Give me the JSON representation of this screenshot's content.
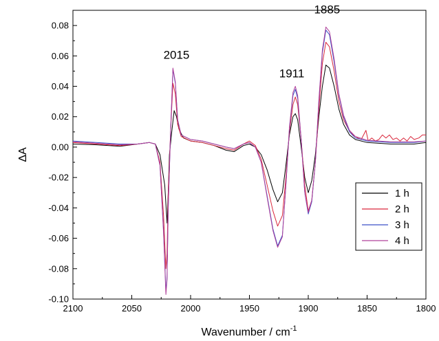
{
  "chart_data": {
    "type": "line",
    "xlabel": "Wavenumber / cm",
    "xlabel_sup": "-1",
    "ylabel": "ΔA",
    "xlim": [
      2100,
      1800
    ],
    "ylim": [
      -0.1,
      0.09
    ],
    "x_reversed": true,
    "x_ticks": [
      2100,
      2050,
      2000,
      1950,
      1900,
      1850,
      1800
    ],
    "x_tick_labels": [
      "2100",
      "2050",
      "2000",
      "1950",
      "1900",
      "1850",
      "1800"
    ],
    "y_ticks": [
      -0.1,
      -0.08,
      -0.06,
      -0.04,
      -0.02,
      0.0,
      0.02,
      0.04,
      0.06,
      0.08
    ],
    "y_tick_labels": [
      "-0.10",
      "-0.08",
      "-0.06",
      "-0.04",
      "-0.02",
      "0.00",
      "0.02",
      "0.04",
      "0.06",
      "0.08"
    ],
    "grid": false,
    "legend_position": "bottom-right",
    "annotations": [
      {
        "text": "2015",
        "x": 2012,
        "y": 0.058
      },
      {
        "text": "1911",
        "x": 1914,
        "y": 0.046
      },
      {
        "text": "1885",
        "x": 1884,
        "y": 0.088
      }
    ],
    "series": [
      {
        "name": "1 h",
        "color": "#000000",
        "points": [
          [
            2100,
            0.002
          ],
          [
            2080,
            0.0015
          ],
          [
            2060,
            0.0005
          ],
          [
            2045,
            0.002
          ],
          [
            2035,
            0.003
          ],
          [
            2030,
            0.002
          ],
          [
            2026,
            -0.005
          ],
          [
            2022,
            -0.025
          ],
          [
            2020,
            -0.05
          ],
          [
            2019,
            -0.03
          ],
          [
            2018,
            -0.005
          ],
          [
            2016,
            0.01
          ],
          [
            2014,
            0.024
          ],
          [
            2012,
            0.02
          ],
          [
            2010,
            0.012
          ],
          [
            2006,
            0.006
          ],
          [
            2000,
            0.004
          ],
          [
            1990,
            0.003
          ],
          [
            1980,
            0.001
          ],
          [
            1970,
            -0.002
          ],
          [
            1963,
            -0.003
          ],
          [
            1955,
            0.001
          ],
          [
            1950,
            0.002
          ],
          [
            1945,
            0.0
          ],
          [
            1940,
            -0.005
          ],
          [
            1935,
            -0.015
          ],
          [
            1930,
            -0.028
          ],
          [
            1926,
            -0.036
          ],
          [
            1922,
            -0.03
          ],
          [
            1919,
            -0.012
          ],
          [
            1916,
            0.008
          ],
          [
            1913,
            0.02
          ],
          [
            1911,
            0.022
          ],
          [
            1909,
            0.018
          ],
          [
            1906,
            0.0
          ],
          [
            1903,
            -0.02
          ],
          [
            1900,
            -0.03
          ],
          [
            1897,
            -0.022
          ],
          [
            1894,
            -0.005
          ],
          [
            1891,
            0.02
          ],
          [
            1888,
            0.04
          ],
          [
            1885,
            0.054
          ],
          [
            1882,
            0.052
          ],
          [
            1878,
            0.04
          ],
          [
            1874,
            0.025
          ],
          [
            1870,
            0.015
          ],
          [
            1865,
            0.008
          ],
          [
            1860,
            0.005
          ],
          [
            1850,
            0.003
          ],
          [
            1840,
            0.0025
          ],
          [
            1830,
            0.002
          ],
          [
            1820,
            0.002
          ],
          [
            1810,
            0.002
          ],
          [
            1800,
            0.003
          ]
        ]
      },
      {
        "name": "2 h",
        "color": "#d9253a",
        "points": [
          [
            2100,
            0.003
          ],
          [
            2080,
            0.002
          ],
          [
            2060,
            0.001
          ],
          [
            2045,
            0.002
          ],
          [
            2035,
            0.003
          ],
          [
            2030,
            0.002
          ],
          [
            2026,
            -0.01
          ],
          [
            2023,
            -0.045
          ],
          [
            2021,
            -0.08
          ],
          [
            2020,
            -0.07
          ],
          [
            2019,
            -0.03
          ],
          [
            2017,
            0.01
          ],
          [
            2015,
            0.042
          ],
          [
            2013,
            0.035
          ],
          [
            2011,
            0.015
          ],
          [
            2008,
            0.007
          ],
          [
            2000,
            0.004
          ],
          [
            1990,
            0.003
          ],
          [
            1980,
            0.001
          ],
          [
            1970,
            -0.001
          ],
          [
            1963,
            -0.002
          ],
          [
            1955,
            0.002
          ],
          [
            1950,
            0.004
          ],
          [
            1945,
            0.001
          ],
          [
            1940,
            -0.008
          ],
          [
            1935,
            -0.025
          ],
          [
            1930,
            -0.042
          ],
          [
            1926,
            -0.052
          ],
          [
            1922,
            -0.045
          ],
          [
            1919,
            -0.02
          ],
          [
            1916,
            0.01
          ],
          [
            1913,
            0.028
          ],
          [
            1911,
            0.033
          ],
          [
            1909,
            0.028
          ],
          [
            1906,
            0.005
          ],
          [
            1903,
            -0.025
          ],
          [
            1900,
            -0.042
          ],
          [
            1897,
            -0.035
          ],
          [
            1894,
            -0.01
          ],
          [
            1891,
            0.025
          ],
          [
            1888,
            0.055
          ],
          [
            1885,
            0.069
          ],
          [
            1882,
            0.066
          ],
          [
            1878,
            0.05
          ],
          [
            1874,
            0.03
          ],
          [
            1870,
            0.018
          ],
          [
            1866,
            0.012
          ],
          [
            1862,
            0.008
          ],
          [
            1858,
            0.006
          ],
          [
            1855,
            0.005
          ],
          [
            1851,
            0.011
          ],
          [
            1849,
            0.004
          ],
          [
            1846,
            0.006
          ],
          [
            1843,
            0.004
          ],
          [
            1840,
            0.005
          ],
          [
            1837,
            0.008
          ],
          [
            1834,
            0.006
          ],
          [
            1831,
            0.008
          ],
          [
            1828,
            0.005
          ],
          [
            1825,
            0.006
          ],
          [
            1822,
            0.004
          ],
          [
            1819,
            0.006
          ],
          [
            1816,
            0.004
          ],
          [
            1813,
            0.007
          ],
          [
            1810,
            0.005
          ],
          [
            1806,
            0.006
          ],
          [
            1803,
            0.008
          ],
          [
            1800,
            0.008
          ]
        ]
      },
      {
        "name": "3 h",
        "color": "#3b4fc6",
        "points": [
          [
            2100,
            0.004
          ],
          [
            2080,
            0.003
          ],
          [
            2060,
            0.002
          ],
          [
            2045,
            0.002
          ],
          [
            2035,
            0.003
          ],
          [
            2030,
            0.002
          ],
          [
            2026,
            -0.012
          ],
          [
            2023,
            -0.055
          ],
          [
            2021,
            -0.095
          ],
          [
            2020,
            -0.085
          ],
          [
            2019,
            -0.04
          ],
          [
            2017,
            0.01
          ],
          [
            2015,
            0.051
          ],
          [
            2013,
            0.042
          ],
          [
            2011,
            0.018
          ],
          [
            2008,
            0.008
          ],
          [
            2000,
            0.005
          ],
          [
            1990,
            0.004
          ],
          [
            1980,
            0.002
          ],
          [
            1970,
            0.0
          ],
          [
            1963,
            -0.001
          ],
          [
            1955,
            0.002
          ],
          [
            1950,
            0.003
          ],
          [
            1945,
            0.0
          ],
          [
            1940,
            -0.01
          ],
          [
            1935,
            -0.032
          ],
          [
            1930,
            -0.054
          ],
          [
            1926,
            -0.065
          ],
          [
            1922,
            -0.058
          ],
          [
            1919,
            -0.025
          ],
          [
            1916,
            0.012
          ],
          [
            1913,
            0.034
          ],
          [
            1911,
            0.038
          ],
          [
            1909,
            0.032
          ],
          [
            1906,
            0.005
          ],
          [
            1903,
            -0.03
          ],
          [
            1900,
            -0.044
          ],
          [
            1897,
            -0.036
          ],
          [
            1894,
            -0.01
          ],
          [
            1891,
            0.03
          ],
          [
            1888,
            0.062
          ],
          [
            1885,
            0.077
          ],
          [
            1882,
            0.074
          ],
          [
            1878,
            0.056
          ],
          [
            1874,
            0.034
          ],
          [
            1870,
            0.02
          ],
          [
            1865,
            0.01
          ],
          [
            1860,
            0.006
          ],
          [
            1850,
            0.004
          ],
          [
            1840,
            0.0035
          ],
          [
            1830,
            0.003
          ],
          [
            1820,
            0.003
          ],
          [
            1810,
            0.003
          ],
          [
            1800,
            0.004
          ]
        ]
      },
      {
        "name": "4 h",
        "color": "#b0409a",
        "points": [
          [
            2100,
            0.0035
          ],
          [
            2080,
            0.0025
          ],
          [
            2060,
            0.0015
          ],
          [
            2045,
            0.002
          ],
          [
            2035,
            0.003
          ],
          [
            2030,
            0.002
          ],
          [
            2026,
            -0.012
          ],
          [
            2023,
            -0.057
          ],
          [
            2021,
            -0.097
          ],
          [
            2020,
            -0.087
          ],
          [
            2019,
            -0.04
          ],
          [
            2017,
            0.01
          ],
          [
            2015,
            0.052
          ],
          [
            2013,
            0.043
          ],
          [
            2011,
            0.018
          ],
          [
            2008,
            0.008
          ],
          [
            2000,
            0.005
          ],
          [
            1990,
            0.004
          ],
          [
            1980,
            0.002
          ],
          [
            1970,
            0.0
          ],
          [
            1963,
            -0.001
          ],
          [
            1955,
            0.002
          ],
          [
            1950,
            0.003
          ],
          [
            1945,
            0.0
          ],
          [
            1940,
            -0.01
          ],
          [
            1935,
            -0.033
          ],
          [
            1930,
            -0.055
          ],
          [
            1926,
            -0.066
          ],
          [
            1922,
            -0.059
          ],
          [
            1919,
            -0.025
          ],
          [
            1916,
            0.013
          ],
          [
            1913,
            0.036
          ],
          [
            1911,
            0.04
          ],
          [
            1909,
            0.034
          ],
          [
            1906,
            0.005
          ],
          [
            1903,
            -0.03
          ],
          [
            1900,
            -0.043
          ],
          [
            1897,
            -0.035
          ],
          [
            1894,
            -0.01
          ],
          [
            1891,
            0.031
          ],
          [
            1888,
            0.064
          ],
          [
            1885,
            0.079
          ],
          [
            1882,
            0.076
          ],
          [
            1878,
            0.058
          ],
          [
            1874,
            0.035
          ],
          [
            1870,
            0.021
          ],
          [
            1865,
            0.011
          ],
          [
            1860,
            0.007
          ],
          [
            1850,
            0.0045
          ],
          [
            1840,
            0.004
          ],
          [
            1830,
            0.0035
          ],
          [
            1820,
            0.0035
          ],
          [
            1810,
            0.0035
          ],
          [
            1800,
            0.004
          ]
        ]
      }
    ]
  }
}
